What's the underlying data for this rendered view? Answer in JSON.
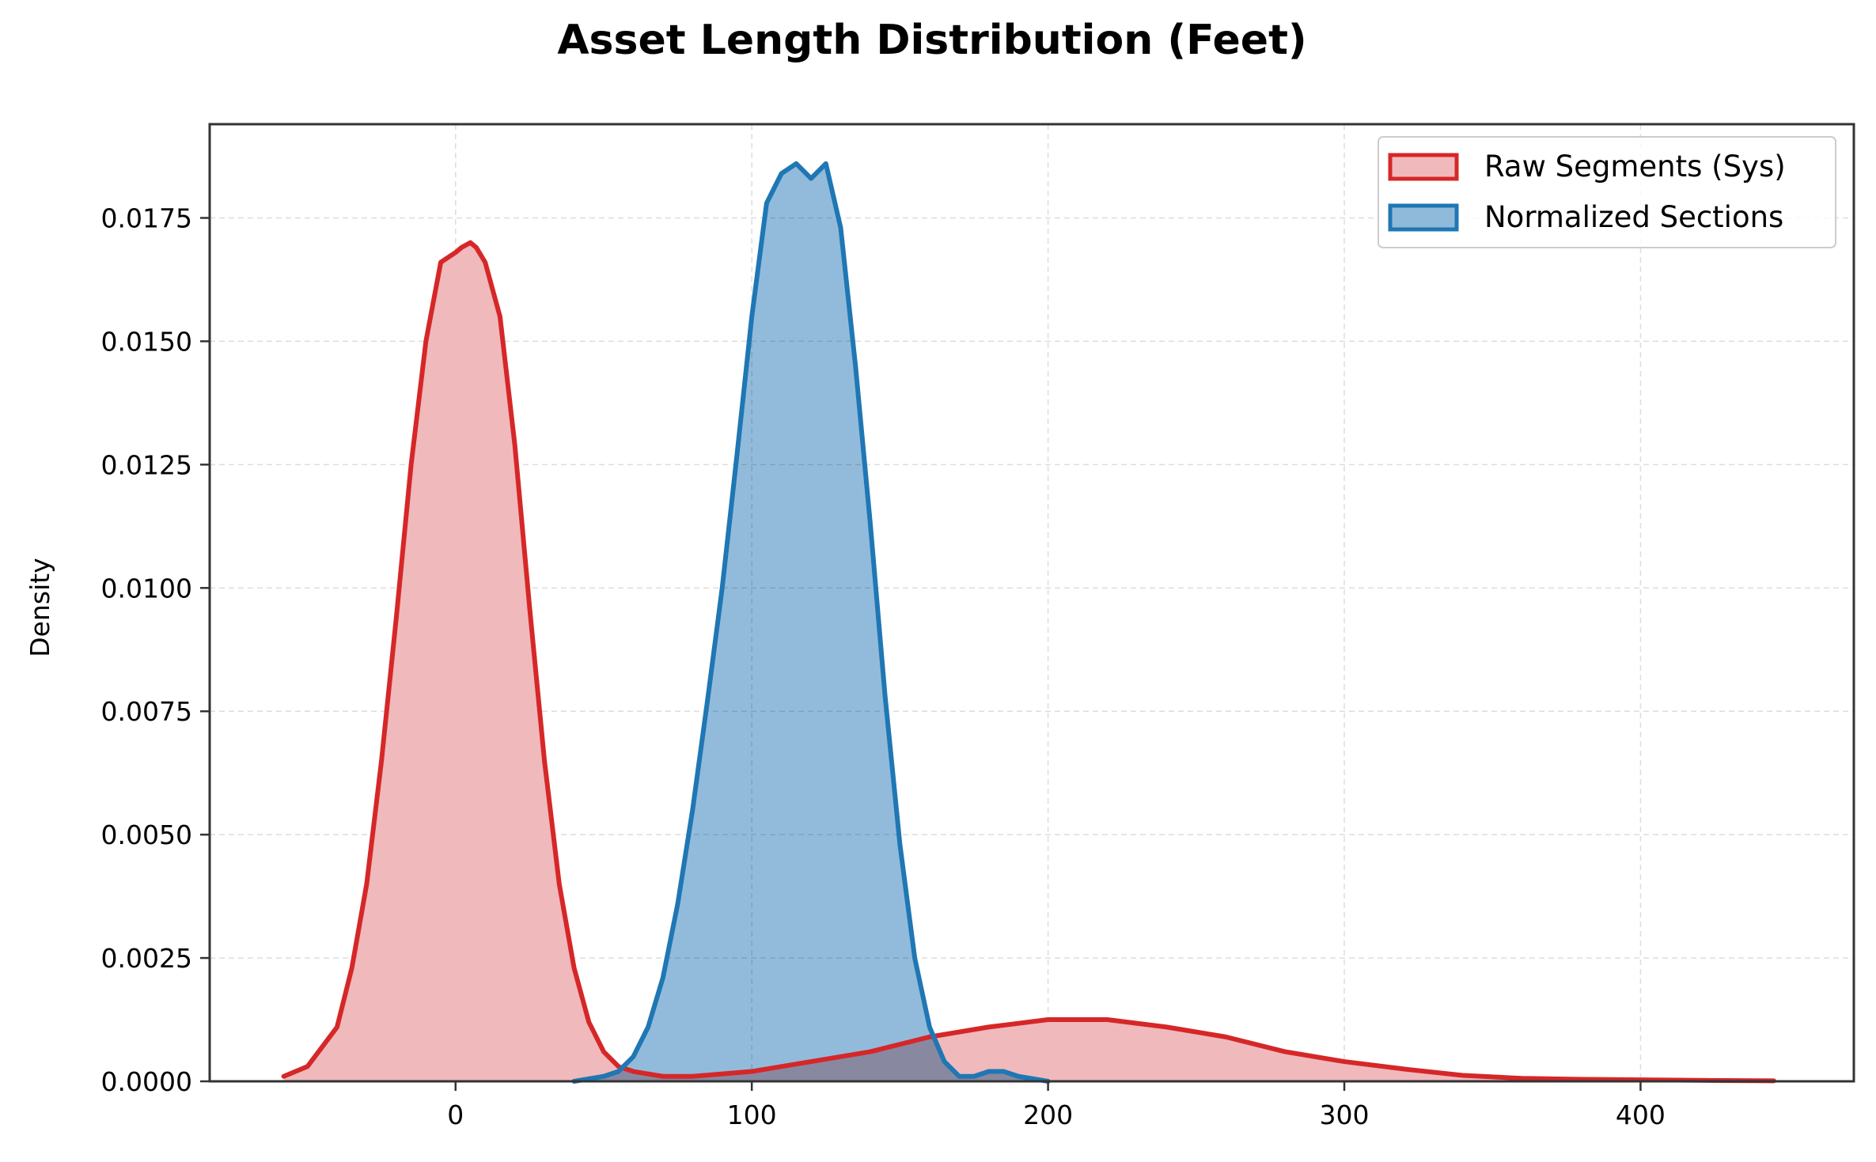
{
  "chart_data": {
    "type": "area",
    "title": "Asset Length Distribution (Feet)",
    "xlabel": "",
    "ylabel": "Density",
    "xlim": [
      -83,
      472
    ],
    "ylim": [
      0,
      0.0194
    ],
    "x_ticks": [
      0,
      100,
      200,
      300,
      400
    ],
    "x_tick_labels": [
      "0",
      "100",
      "200",
      "300",
      "400"
    ],
    "y_ticks": [
      0,
      0.0025,
      0.005,
      0.0075,
      0.01,
      0.0125,
      0.015,
      0.0175
    ],
    "y_tick_labels": [
      "0.0000",
      "0.0025",
      "0.0050",
      "0.0075",
      "0.0100",
      "0.0125",
      "0.0150",
      "0.0175"
    ],
    "grid": true,
    "legend_position": "upper right",
    "series": [
      {
        "name": "Raw Segments (Sys)",
        "line_color": "#d62728",
        "fill_color": "#f0b9bc",
        "x": [
          -58,
          -50,
          -40,
          -35,
          -30,
          -25,
          -20,
          -15,
          -10,
          -5,
          0,
          2,
          5,
          7,
          10,
          15,
          20,
          25,
          30,
          35,
          40,
          45,
          50,
          55,
          60,
          70,
          80,
          100,
          120,
          140,
          160,
          180,
          200,
          220,
          240,
          260,
          280,
          300,
          320,
          340,
          360,
          380,
          400,
          420,
          445
        ],
        "y": [
          0.0001,
          0.0003,
          0.0011,
          0.0023,
          0.004,
          0.0065,
          0.0094,
          0.0125,
          0.015,
          0.0166,
          0.0168,
          0.0169,
          0.017,
          0.0169,
          0.0166,
          0.0155,
          0.0129,
          0.0096,
          0.0065,
          0.004,
          0.0023,
          0.0012,
          0.0006,
          0.0003,
          0.0002,
          0.0001,
          0.0001,
          0.0002,
          0.0004,
          0.0006,
          0.0009,
          0.0011,
          0.00125,
          0.00125,
          0.0011,
          0.0009,
          0.0006,
          0.0004,
          0.00025,
          0.00012,
          6e-05,
          4e-05,
          3e-05,
          2e-05,
          1e-05
        ]
      },
      {
        "name": "Normalized Sections",
        "line_color": "#1f77b4",
        "fill_color": "#90bada",
        "x": [
          40,
          50,
          55,
          60,
          65,
          70,
          75,
          80,
          85,
          90,
          95,
          100,
          105,
          110,
          115,
          120,
          125,
          130,
          135,
          140,
          145,
          150,
          155,
          160,
          165,
          170,
          175,
          180,
          185,
          190,
          200
        ],
        "y": [
          0,
          0.0001,
          0.0002,
          0.0005,
          0.0011,
          0.0021,
          0.0036,
          0.0055,
          0.0077,
          0.01,
          0.0127,
          0.0155,
          0.0178,
          0.0184,
          0.0186,
          0.0183,
          0.0186,
          0.0173,
          0.0145,
          0.0113,
          0.0078,
          0.0048,
          0.0025,
          0.0011,
          0.0004,
          0.0001,
          0.0001,
          0.0002,
          0.0002,
          0.0001,
          0
        ]
      }
    ]
  }
}
